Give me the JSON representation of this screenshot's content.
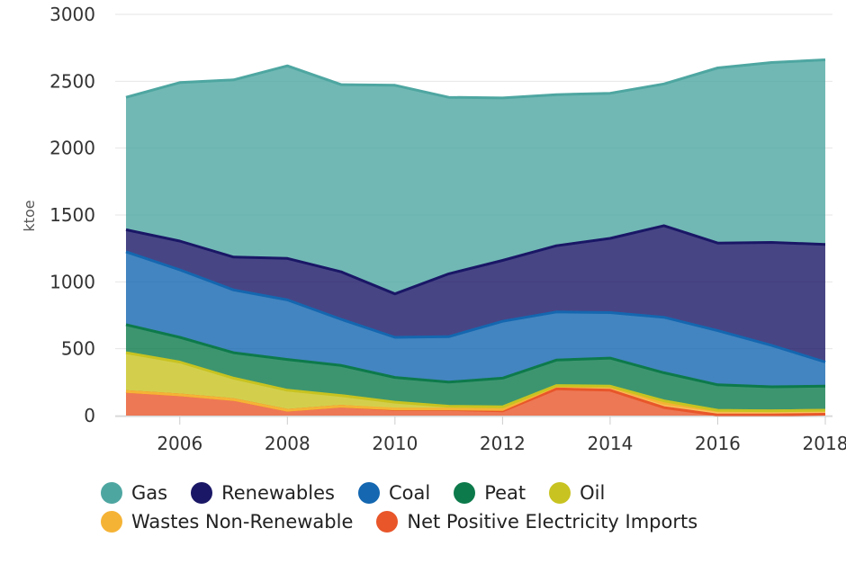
{
  "chart_data": {
    "type": "area",
    "stacked": true,
    "title": "",
    "xlabel": "",
    "ylabel": "ktoe",
    "ylim": [
      0,
      3000
    ],
    "yticks": [
      0,
      500,
      1000,
      1500,
      2000,
      2500,
      3000
    ],
    "xlim": [
      2005,
      2018
    ],
    "xticks": [
      2006,
      2008,
      2010,
      2012,
      2014,
      2016,
      2018
    ],
    "grid": true,
    "legend_position": "bottom",
    "x": [
      2005,
      2006,
      2007,
      2008,
      2009,
      2010,
      2011,
      2012,
      2013,
      2014,
      2015,
      2016,
      2017,
      2018
    ],
    "series": [
      {
        "name": "Net Positive Electricity Imports",
        "color": "#E8562A",
        "values": [
          180,
          155,
          120,
          40,
          70,
          45,
          45,
          35,
          200,
          190,
          60,
          5,
          5,
          10
        ]
      },
      {
        "name": "Wastes Non-Renewable",
        "color": "#F5B335",
        "values": [
          0,
          0,
          0,
          0,
          0,
          5,
          5,
          10,
          20,
          25,
          30,
          30,
          30,
          30
        ]
      },
      {
        "name": "Oil",
        "color": "#C8C321",
        "values": [
          290,
          245,
          160,
          150,
          80,
          50,
          20,
          20,
          5,
          5,
          20,
          5,
          0,
          0
        ]
      },
      {
        "name": "Peat",
        "color": "#0D7A4B",
        "values": [
          210,
          185,
          190,
          230,
          225,
          185,
          180,
          215,
          190,
          210,
          210,
          190,
          180,
          180
        ]
      },
      {
        "name": "Coal",
        "color": "#1467B0",
        "values": [
          545,
          505,
          470,
          445,
          345,
          300,
          340,
          425,
          360,
          340,
          415,
          405,
          310,
          180
        ]
      },
      {
        "name": "Renewables",
        "color": "#1A1766",
        "values": [
          165,
          215,
          245,
          310,
          355,
          325,
          470,
          455,
          495,
          555,
          685,
          655,
          770,
          880
        ]
      },
      {
        "name": "Gas",
        "color": "#4EA6A1",
        "values": [
          990,
          1185,
          1325,
          1440,
          1400,
          1560,
          1320,
          1215,
          1130,
          1085,
          1060,
          1310,
          1345,
          1380
        ]
      }
    ],
    "legend_rows": [
      [
        "Gas",
        "Renewables",
        "Coal",
        "Peat",
        "Oil"
      ],
      [
        "Wastes Non-Renewable",
        "Net Positive Electricity Imports"
      ]
    ]
  }
}
